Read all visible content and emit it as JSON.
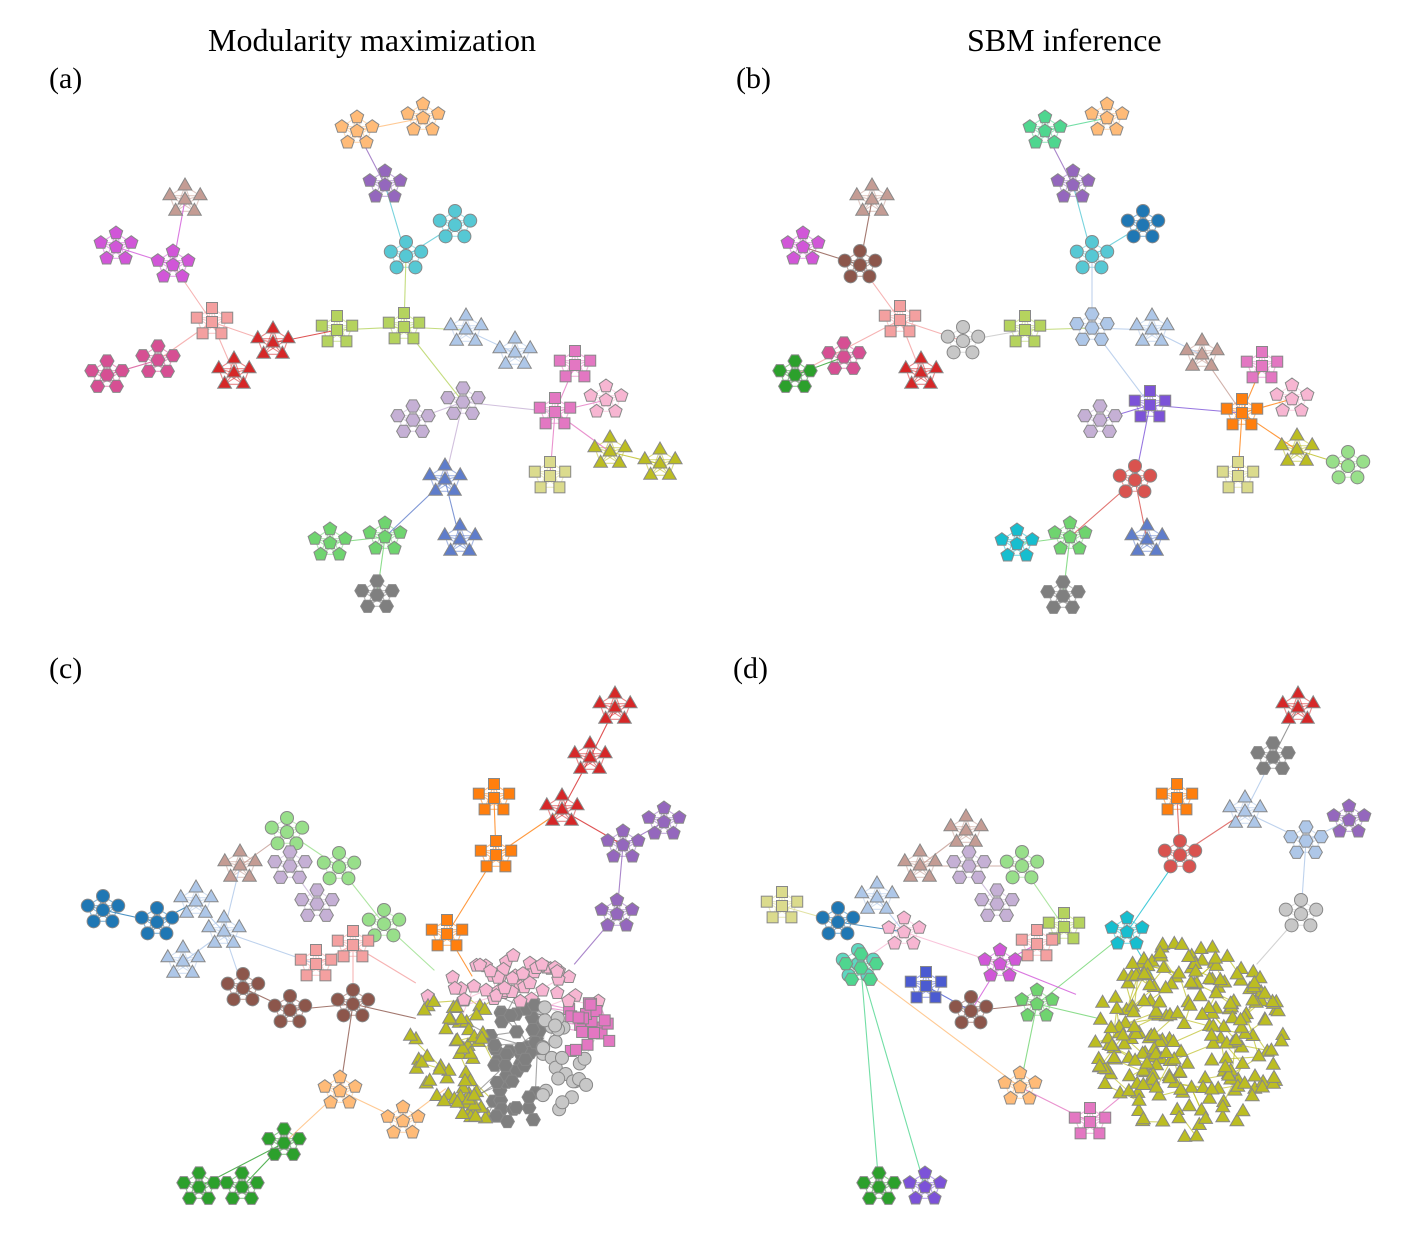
{
  "titles": {
    "left": "Modularity maximization",
    "right": "SBM inference"
  },
  "panel_labels": {
    "a": "(a)",
    "b": "(b)",
    "c": "(c)",
    "d": "(d)"
  },
  "colors": {
    "pink_salmon": "#f4a0a0",
    "red": "#d62728",
    "olive": "#bcbd22",
    "yellow_green": "#b5d35e",
    "light_blue": "#aec7e8",
    "lavender": "#c5b0d5",
    "pink": "#e377c2",
    "light_pink": "#f7b6d2",
    "blue": "#5f7dcb",
    "green": "#6fd46f",
    "gray": "#7f7f7f",
    "light_gray": "#c7c7c7",
    "purple": "#9467bd",
    "cyan": "#56c8d4",
    "dark_blue": "#1f77b4",
    "orange": "#ff7f0e",
    "peach": "#ffbb78",
    "brown": "#8c564b",
    "tan": "#c49c94",
    "magenta": "#d156d8",
    "raspberry": "#d64f93",
    "khaki": "#dbdb8d",
    "dark_green": "#2ca02c",
    "teal": "#17becf",
    "mint": "#4fd68f",
    "violet": "#7c52d8",
    "indigo": "#4b5bd1",
    "brick": "#d9534f",
    "light_green": "#98df8a",
    "aqua": "#5dd8c0"
  },
  "networks": {
    "a": {
      "clusters": [
        {
          "shape": "square",
          "color": "pink_salmon"
        },
        {
          "shape": "triangle",
          "color": "red"
        },
        {
          "shape": "triangle",
          "color": "red"
        },
        {
          "shape": "square",
          "color": "yellow_green"
        },
        {
          "shape": "square",
          "color": "yellow_green"
        },
        {
          "shape": "triangle",
          "color": "light_blue"
        },
        {
          "shape": "triangle",
          "color": "light_blue"
        },
        {
          "shape": "hexagon",
          "color": "lavender"
        },
        {
          "shape": "hexagon",
          "color": "lavender"
        },
        {
          "shape": "square",
          "color": "pink"
        },
        {
          "shape": "square",
          "color": "pink"
        },
        {
          "shape": "pentagon",
          "color": "light_pink"
        },
        {
          "shape": "triangle",
          "color": "olive"
        },
        {
          "shape": "triangle",
          "color": "olive"
        },
        {
          "shape": "square",
          "color": "khaki"
        },
        {
          "shape": "triangle",
          "color": "blue"
        },
        {
          "shape": "triangle",
          "color": "blue"
        },
        {
          "shape": "pentagon",
          "color": "green"
        },
        {
          "shape": "pentagon",
          "color": "green"
        },
        {
          "shape": "hexagon",
          "color": "gray"
        },
        {
          "shape": "circle",
          "color": "cyan"
        },
        {
          "shape": "circle",
          "color": "cyan"
        },
        {
          "shape": "pentagon",
          "color": "purple"
        },
        {
          "shape": "pentagon",
          "color": "peach"
        },
        {
          "shape": "pentagon",
          "color": "peach"
        },
        {
          "shape": "pentagon",
          "color": "magenta"
        },
        {
          "shape": "pentagon",
          "color": "magenta"
        },
        {
          "shape": "triangle",
          "color": "tan"
        },
        {
          "shape": "hexagon",
          "color": "raspberry"
        },
        {
          "shape": "hexagon",
          "color": "raspberry"
        }
      ]
    },
    "b": {
      "clusters": [
        {
          "shape": "square",
          "color": "pink_salmon"
        },
        {
          "shape": "triangle",
          "color": "red"
        },
        {
          "shape": "circle",
          "color": "light_gray"
        },
        {
          "shape": "square",
          "color": "yellow_green"
        },
        {
          "shape": "hexagon",
          "color": "light_blue"
        },
        {
          "shape": "triangle",
          "color": "light_blue"
        },
        {
          "shape": "triangle",
          "color": "tan"
        },
        {
          "shape": "square",
          "color": "violet"
        },
        {
          "shape": "hexagon",
          "color": "lavender"
        },
        {
          "shape": "square",
          "color": "orange"
        },
        {
          "shape": "square",
          "color": "pink"
        },
        {
          "shape": "pentagon",
          "color": "light_pink"
        },
        {
          "shape": "triangle",
          "color": "olive"
        },
        {
          "shape": "circle",
          "color": "light_green"
        },
        {
          "shape": "square",
          "color": "khaki"
        },
        {
          "shape": "circle",
          "color": "brick"
        },
        {
          "shape": "triangle",
          "color": "blue"
        },
        {
          "shape": "pentagon",
          "color": "green"
        },
        {
          "shape": "pentagon",
          "color": "teal"
        },
        {
          "shape": "hexagon",
          "color": "gray"
        },
        {
          "shape": "circle",
          "color": "cyan"
        },
        {
          "shape": "circle",
          "color": "dark_blue"
        },
        {
          "shape": "pentagon",
          "color": "purple"
        },
        {
          "shape": "pentagon",
          "color": "mint"
        },
        {
          "shape": "pentagon",
          "color": "peach"
        },
        {
          "shape": "pentagon",
          "color": "magenta"
        },
        {
          "shape": "circle",
          "color": "brown"
        },
        {
          "shape": "triangle",
          "color": "tan"
        },
        {
          "shape": "hexagon",
          "color": "dark_green"
        },
        {
          "shape": "hexagon",
          "color": "raspberry"
        }
      ]
    },
    "c": {
      "clusters": [
        {
          "shape": "circle",
          "color": "dark_blue"
        },
        {
          "shape": "circle",
          "color": "dark_blue"
        },
        {
          "shape": "triangle",
          "color": "light_blue"
        },
        {
          "shape": "triangle",
          "color": "light_blue"
        },
        {
          "shape": "triangle",
          "color": "light_blue"
        },
        {
          "shape": "triangle",
          "color": "tan"
        },
        {
          "shape": "circle",
          "color": "light_green"
        },
        {
          "shape": "hexagon",
          "color": "lavender"
        },
        {
          "shape": "circle",
          "color": "light_green"
        },
        {
          "shape": "hexagon",
          "color": "lavender"
        },
        {
          "shape": "circle",
          "color": "light_green"
        },
        {
          "shape": "square",
          "color": "pink_salmon"
        },
        {
          "shape": "square",
          "color": "pink_salmon"
        },
        {
          "shape": "circle",
          "color": "brown"
        },
        {
          "shape": "circle",
          "color": "brown"
        },
        {
          "shape": "circle",
          "color": "brown"
        },
        {
          "shape": "square",
          "color": "orange"
        },
        {
          "shape": "square",
          "color": "orange"
        },
        {
          "shape": "square",
          "color": "orange"
        },
        {
          "shape": "triangle",
          "color": "red"
        },
        {
          "shape": "triangle",
          "color": "red"
        },
        {
          "shape": "triangle",
          "color": "red"
        },
        {
          "shape": "pentagon",
          "color": "purple"
        },
        {
          "shape": "pentagon",
          "color": "purple"
        },
        {
          "shape": "pentagon",
          "color": "purple"
        },
        {
          "shape": "pentagon",
          "color": "peach"
        },
        {
          "shape": "pentagon",
          "color": "peach"
        },
        {
          "shape": "hexagon",
          "color": "dark_green"
        },
        {
          "shape": "hexagon",
          "color": "dark_green"
        },
        {
          "shape": "hexagon",
          "color": "dark_green"
        }
      ],
      "blob_groups": [
        {
          "shape": "pentagon",
          "color": "light_pink"
        },
        {
          "shape": "triangle",
          "color": "olive"
        },
        {
          "shape": "hexagon",
          "color": "gray"
        },
        {
          "shape": "circle",
          "color": "light_gray"
        },
        {
          "shape": "square",
          "color": "pink"
        }
      ]
    },
    "d": {
      "clusters": [
        {
          "shape": "square",
          "color": "khaki"
        },
        {
          "shape": "circle",
          "color": "dark_blue"
        },
        {
          "shape": "triangle",
          "color": "light_blue"
        },
        {
          "shape": "pentagon",
          "color": "light_pink"
        },
        {
          "shape": "circle",
          "color": "aqua"
        },
        {
          "shape": "triangle",
          "color": "tan"
        },
        {
          "shape": "triangle",
          "color": "tan"
        },
        {
          "shape": "hexagon",
          "color": "lavender"
        },
        {
          "shape": "circle",
          "color": "light_green"
        },
        {
          "shape": "hexagon",
          "color": "lavender"
        },
        {
          "shape": "square",
          "color": "yellow_green"
        },
        {
          "shape": "square",
          "color": "pink_salmon"
        },
        {
          "shape": "pentagon",
          "color": "magenta"
        },
        {
          "shape": "square",
          "color": "indigo"
        },
        {
          "shape": "circle",
          "color": "brown"
        },
        {
          "shape": "pentagon",
          "color": "green"
        },
        {
          "shape": "pentagon",
          "color": "teal"
        },
        {
          "shape": "square",
          "color": "orange"
        },
        {
          "shape": "circle",
          "color": "brick"
        },
        {
          "shape": "triangle",
          "color": "light_blue"
        },
        {
          "shape": "hexagon",
          "color": "gray"
        },
        {
          "shape": "triangle",
          "color": "red"
        },
        {
          "shape": "pentagon",
          "color": "purple"
        },
        {
          "shape": "hexagon",
          "color": "light_blue"
        },
        {
          "shape": "circle",
          "color": "light_gray"
        },
        {
          "shape": "pentagon",
          "color": "peach"
        },
        {
          "shape": "square",
          "color": "pink"
        },
        {
          "shape": "hexagon",
          "color": "mint"
        },
        {
          "shape": "hexagon",
          "color": "dark_green"
        },
        {
          "shape": "pentagon",
          "color": "violet"
        }
      ],
      "blob_groups": [
        {
          "shape": "triangle",
          "color": "olive"
        }
      ]
    }
  }
}
